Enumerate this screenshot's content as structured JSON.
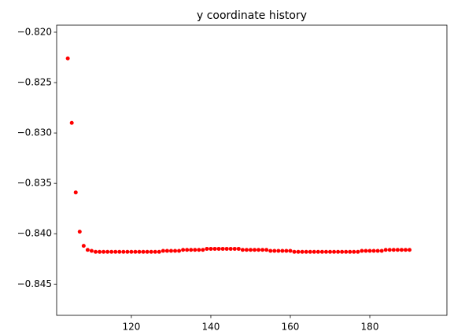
{
  "chart_data": {
    "type": "scatter",
    "title": "y coordinate history",
    "color": "#ff0000",
    "x": [
      104,
      105,
      106,
      107,
      108,
      109,
      110,
      111,
      112,
      113,
      114,
      115,
      116,
      117,
      118,
      119,
      120,
      121,
      122,
      123,
      124,
      125,
      126,
      127,
      128,
      129,
      130,
      131,
      132,
      133,
      134,
      135,
      136,
      137,
      138,
      139,
      140,
      141,
      142,
      143,
      144,
      145,
      146,
      147,
      148,
      149,
      150,
      151,
      152,
      153,
      154,
      155,
      156,
      157,
      158,
      159,
      160,
      161,
      162,
      163,
      164,
      165,
      166,
      167,
      168,
      169,
      170,
      171,
      172,
      173,
      174,
      175,
      176,
      177,
      178,
      179,
      180,
      181,
      182,
      183,
      184,
      185,
      186,
      187,
      188,
      189,
      190
    ],
    "values": [
      -0.8226,
      -0.829,
      -0.8359,
      -0.8398,
      -0.8412,
      -0.8416,
      -0.8417,
      -0.8418,
      -0.8418,
      -0.8418,
      -0.8418,
      -0.8418,
      -0.8418,
      -0.8418,
      -0.8418,
      -0.8418,
      -0.8418,
      -0.8418,
      -0.8418,
      -0.8418,
      -0.8418,
      -0.8418,
      -0.8418,
      -0.8418,
      -0.8417,
      -0.8417,
      -0.8417,
      -0.8417,
      -0.8417,
      -0.8416,
      -0.8416,
      -0.8416,
      -0.8416,
      -0.8416,
      -0.8416,
      -0.8415,
      -0.8415,
      -0.8415,
      -0.8415,
      -0.8415,
      -0.8415,
      -0.8415,
      -0.8415,
      -0.8415,
      -0.8416,
      -0.8416,
      -0.8416,
      -0.8416,
      -0.8416,
      -0.8416,
      -0.8416,
      -0.8417,
      -0.8417,
      -0.8417,
      -0.8417,
      -0.8417,
      -0.8417,
      -0.8418,
      -0.8418,
      -0.8418,
      -0.8418,
      -0.8418,
      -0.8418,
      -0.8418,
      -0.8418,
      -0.8418,
      -0.8418,
      -0.8418,
      -0.8418,
      -0.8418,
      -0.8418,
      -0.8418,
      -0.8418,
      -0.8418,
      -0.8417,
      -0.8417,
      -0.8417,
      -0.8417,
      -0.8417,
      -0.8417,
      -0.8416,
      -0.8416,
      -0.8416,
      -0.8416,
      -0.8416,
      -0.8416,
      -0.8416
    ],
    "xlim": [
      101.2,
      199.4
    ],
    "xticks": [
      120,
      140,
      160,
      180
    ],
    "ylim": [
      -0.8481,
      -0.8193
    ],
    "yticks": [
      {
        "value": -0.845,
        "label": "−0.845"
      },
      {
        "value": -0.84,
        "label": "−0.840"
      },
      {
        "value": -0.835,
        "label": "−0.835"
      },
      {
        "value": -0.83,
        "label": "−0.830"
      },
      {
        "value": -0.825,
        "label": "−0.825"
      },
      {
        "value": -0.82,
        "label": "−0.820"
      }
    ]
  }
}
